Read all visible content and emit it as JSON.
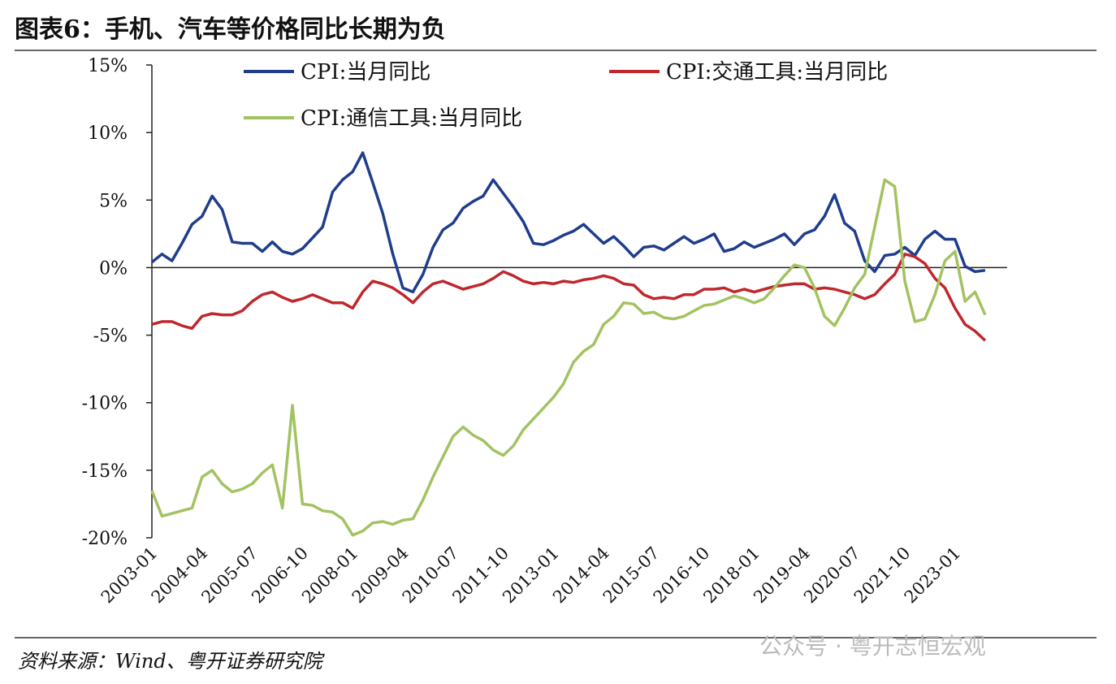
{
  "chart_data": {
    "type": "line",
    "title": "图表6：手机、汽车等价格同比长期为负",
    "source": "资料来源：Wind、粤开证券研究院",
    "watermark": "公众号 · 粤开志恒宏观",
    "x": [
      "2003-01",
      null,
      null,
      null,
      null,
      "2004-04",
      null,
      null,
      null,
      null,
      "2005-07",
      null,
      null,
      null,
      null,
      "2006-10",
      null,
      null,
      null,
      null,
      "2008-01",
      null,
      null,
      null,
      null,
      "2009-04",
      null,
      null,
      null,
      null,
      "2010-07",
      null,
      null,
      null,
      null,
      "2011-10",
      null,
      null,
      null,
      null,
      "2013-01",
      null,
      null,
      null,
      null,
      "2014-04",
      null,
      null,
      null,
      null,
      "2015-07",
      null,
      null,
      null,
      null,
      "2016-10",
      null,
      null,
      null,
      null,
      "2018-01",
      null,
      null,
      null,
      null,
      "2019-04",
      null,
      null,
      null,
      null,
      "2020-07",
      null,
      null,
      null,
      null,
      "2021-10",
      null,
      null,
      null,
      null,
      "2023-01",
      null,
      null,
      null
    ],
    "series": [
      {
        "name": "CPI:当月同比",
        "color": "#1f3d8c",
        "values": [
          0.4,
          1.0,
          0.5,
          1.8,
          3.2,
          3.8,
          5.3,
          4.3,
          1.9,
          1.8,
          1.8,
          1.2,
          1.9,
          1.2,
          1.0,
          1.4,
          2.2,
          3.0,
          5.6,
          6.5,
          7.1,
          8.5,
          6.3,
          4.0,
          1.0,
          -1.5,
          -1.8,
          -0.5,
          1.5,
          2.8,
          3.3,
          4.4,
          4.9,
          5.3,
          6.5,
          5.5,
          4.5,
          3.4,
          1.8,
          1.7,
          2.0,
          2.4,
          2.7,
          3.2,
          2.5,
          1.8,
          2.3,
          1.6,
          0.8,
          1.5,
          1.6,
          1.3,
          1.8,
          2.3,
          1.8,
          2.1,
          2.5,
          1.2,
          1.4,
          1.9,
          1.5,
          1.8,
          2.1,
          2.5,
          1.7,
          2.5,
          2.8,
          3.8,
          5.4,
          3.3,
          2.7,
          0.5,
          -0.3,
          0.9,
          1.0,
          1.5,
          0.9,
          2.1,
          2.7,
          2.1,
          2.1,
          0.1,
          -0.3,
          -0.2
        ]
      },
      {
        "name": "CPI:交通工具:当月同比",
        "color": "#c0272d",
        "values": [
          -4.2,
          -4.0,
          -4.0,
          -4.3,
          -4.5,
          -3.6,
          -3.4,
          -3.5,
          -3.5,
          -3.2,
          -2.5,
          -2.0,
          -1.8,
          -2.2,
          -2.5,
          -2.3,
          -2.0,
          -2.3,
          -2.6,
          -2.6,
          -3.0,
          -1.8,
          -1.0,
          -1.2,
          -1.5,
          -2.0,
          -2.6,
          -1.8,
          -1.2,
          -1.0,
          -1.3,
          -1.6,
          -1.4,
          -1.2,
          -0.8,
          -0.3,
          -0.6,
          -1.0,
          -1.2,
          -1.1,
          -1.2,
          -1.0,
          -1.1,
          -0.9,
          -0.8,
          -0.6,
          -0.8,
          -1.2,
          -1.3,
          -2.0,
          -2.3,
          -2.2,
          -2.3,
          -2.0,
          -2.0,
          -1.6,
          -1.6,
          -1.5,
          -1.8,
          -1.6,
          -1.8,
          -1.6,
          -1.4,
          -1.3,
          -1.2,
          -1.2,
          -1.6,
          -1.5,
          -1.6,
          -1.8,
          -2.0,
          -2.3,
          -2.0,
          -1.2,
          -0.5,
          1.0,
          0.8,
          0.3,
          -0.8,
          -1.5,
          -3.0,
          -4.2,
          -4.7,
          -5.4
        ]
      },
      {
        "name": "CPI:通信工具:当月同比",
        "color": "#a3c261",
        "values": [
          -16.5,
          -18.4,
          -18.2,
          -18.0,
          -17.8,
          -15.5,
          -15.0,
          -16.0,
          -16.6,
          -16.4,
          -16.0,
          -15.2,
          -14.6,
          -17.8,
          -10.2,
          -17.5,
          -17.6,
          -18.0,
          -18.1,
          -18.6,
          -19.8,
          -19.5,
          -18.9,
          -18.8,
          -19.0,
          -18.7,
          -18.6,
          -17.2,
          -15.5,
          -14.0,
          -12.5,
          -11.8,
          -12.4,
          -12.8,
          -13.5,
          -13.9,
          -13.2,
          -12.0,
          -11.2,
          -10.4,
          -9.6,
          -8.6,
          -7.0,
          -6.2,
          -5.7,
          -4.2,
          -3.6,
          -2.6,
          -2.7,
          -3.4,
          -3.3,
          -3.7,
          -3.8,
          -3.6,
          -3.2,
          -2.8,
          -2.7,
          -2.4,
          -2.1,
          -2.3,
          -2.6,
          -2.3,
          -1.5,
          -0.6,
          0.2,
          0.0,
          -1.5,
          -3.6,
          -4.3,
          -3.0,
          -1.5,
          -0.5,
          3.0,
          6.5,
          6.0,
          -1.0,
          -4.0,
          -3.8,
          -2.0,
          0.5,
          1.2,
          -2.5,
          -1.8,
          -3.5
        ]
      }
    ],
    "ylim": [
      -20,
      15
    ],
    "yticks": [
      {
        "value": -20,
        "label": "-20%"
      },
      {
        "value": -15,
        "label": "-15%"
      },
      {
        "value": -10,
        "label": "-10%"
      },
      {
        "value": -5,
        "label": "-5%"
      },
      {
        "value": 0,
        "label": "0%"
      },
      {
        "value": 5,
        "label": "5%"
      },
      {
        "value": 10,
        "label": "10%"
      },
      {
        "value": 15,
        "label": "15%"
      }
    ]
  }
}
